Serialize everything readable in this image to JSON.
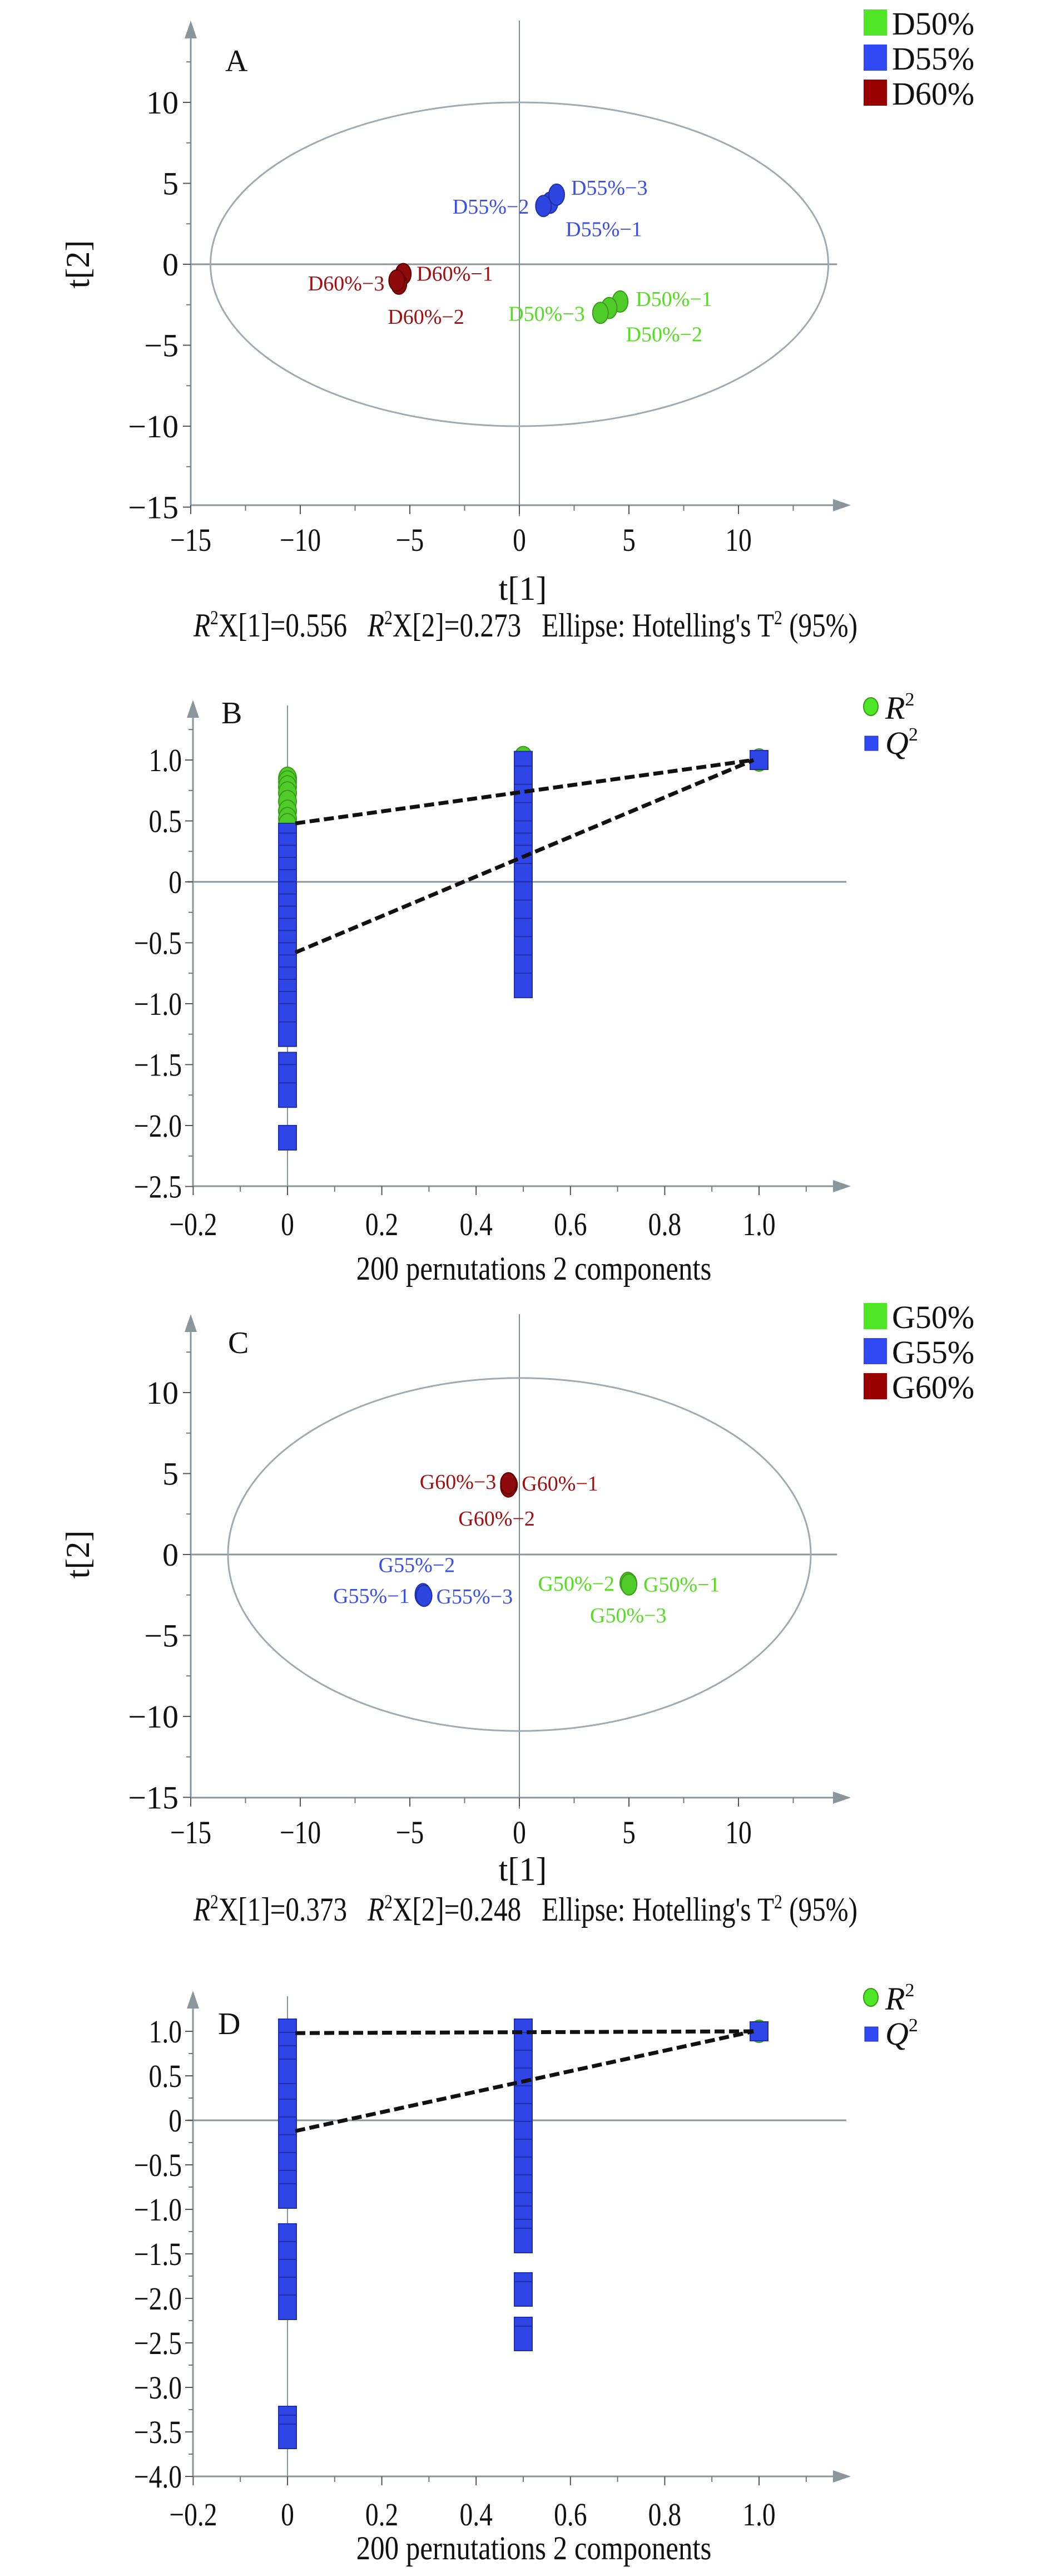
{
  "chart_data": [
    {
      "id": "A",
      "type": "scatter",
      "panel_label": "A",
      "xlabel": "t[1]",
      "ylabel": "t[2]",
      "xlim": [
        -15,
        14
      ],
      "ylim": [
        -15,
        14
      ],
      "xticks": [
        -15,
        -10,
        -5,
        0,
        5,
        10
      ],
      "yticks": [
        -15,
        -10,
        -5,
        0,
        5,
        10
      ],
      "xtick_labels": [
        "−15",
        "−10",
        "−5",
        "0",
        "5",
        "10"
      ],
      "ytick_labels": [
        "−15",
        "−10",
        "−5",
        "0",
        "5",
        "10"
      ],
      "ellipse": {
        "label": "Hotelling's T2 (95%)",
        "rx": 14.1,
        "ry": 10.0
      },
      "legend_position": "top-right",
      "series": [
        {
          "name": "D50%",
          "color": "#4ee626",
          "points": [
            {
              "label": "D50%−1",
              "x": 4.6,
              "y": -2.3
            },
            {
              "label": "D50%−2",
              "x": 4.1,
              "y": -2.7
            },
            {
              "label": "D50%−3",
              "x": 3.7,
              "y": -3.0
            }
          ]
        },
        {
          "name": "D55%",
          "color": "#3148f5",
          "points": [
            {
              "label": "D55%−1",
              "x": 1.4,
              "y": 3.8
            },
            {
              "label": "D55%−2",
              "x": 1.1,
              "y": 3.6
            },
            {
              "label": "D55%−3",
              "x": 1.7,
              "y": 4.3
            }
          ]
        },
        {
          "name": "D60%",
          "color": "#990000",
          "points": [
            {
              "label": "D60%−1",
              "x": -5.3,
              "y": -0.6
            },
            {
              "label": "D60%−2",
              "x": -5.5,
              "y": -1.2
            },
            {
              "label": "D60%−3",
              "x": -5.6,
              "y": -1.0
            }
          ]
        }
      ],
      "caption": {
        "r2x1": "R2X[1]=0.556",
        "r2x1_value": "X[1]=0.556",
        "r2x2_value": "X[2]=0.273",
        "ellipse_text": "Ellipse: Hotelling's T",
        "ellipse_tail": "(95%)"
      }
    },
    {
      "id": "B",
      "type": "scatter",
      "panel_label": "B",
      "xlabel": "200 pernutations 2 components",
      "ylabel": "",
      "xlim": [
        -0.2,
        1.15
      ],
      "ylim": [
        -2.5,
        1.3
      ],
      "xticks": [
        -0.2,
        0,
        0.2,
        0.4,
        0.6,
        0.8,
        1.0
      ],
      "xtick_labels": [
        "−0.2",
        "0",
        "0.2",
        "0.4",
        "0.6",
        "0.8",
        "1.0"
      ],
      "yticks": [
        -2.5,
        -2.0,
        -1.5,
        -1.0,
        -0.5,
        0,
        0.5,
        1.0
      ],
      "ytick_labels": [
        "−2.5",
        "−2.0",
        "−1.5",
        "−1.0",
        "−0.5",
        "0",
        "0.5",
        "1.0"
      ],
      "legend_position": "top-right",
      "legend": [
        {
          "name": "R2",
          "base": "R",
          "sup": "2",
          "marker": "circle",
          "color": "#4ee626"
        },
        {
          "name": "Q2",
          "base": "Q",
          "sup": "2",
          "marker": "square",
          "color": "#3148f5"
        }
      ],
      "series": [
        {
          "name": "R2",
          "color": "#4ee626",
          "x": [
            0,
            0,
            0,
            0,
            0,
            0,
            0,
            0,
            0.5,
            0.5,
            0.5,
            0.5,
            0.5,
            0.5,
            1.0
          ],
          "y": [
            0.85,
            0.82,
            0.78,
            0.73,
            0.66,
            0.58,
            0.52,
            0.47,
            1.02,
            0.95,
            0.85,
            0.75,
            0.62,
            0.52,
            1.0
          ]
        },
        {
          "name": "Q2",
          "color": "#3148f5",
          "x": [
            0,
            0,
            0,
            0,
            0,
            0,
            0,
            0,
            0,
            0,
            0,
            0,
            0,
            0,
            0,
            0,
            0,
            0,
            0,
            0,
            0,
            0.5,
            0.5,
            0.5,
            0.5,
            0.5,
            0.5,
            0.5,
            0.5,
            0.5,
            0.5,
            0.5,
            0.5,
            0.5,
            0.5,
            1.0
          ],
          "y": [
            0.38,
            0.3,
            0.2,
            0.1,
            0.0,
            -0.1,
            -0.2,
            -0.3,
            -0.4,
            -0.5,
            -0.6,
            -0.7,
            -0.8,
            -0.9,
            -1.0,
            -1.1,
            -1.25,
            -1.5,
            -1.6,
            -1.75,
            -2.1,
            0.97,
            0.85,
            0.7,
            0.55,
            0.4,
            0.3,
            0.2,
            0.05,
            -0.1,
            -0.25,
            -0.4,
            -0.55,
            -0.7,
            -0.85,
            1.0
          ]
        }
      ],
      "regression_lines": [
        {
          "name": "R2",
          "intercept": 0.48,
          "x": [
            0,
            1.0
          ],
          "y": [
            0.48,
            1.0
          ]
        },
        {
          "name": "Q2",
          "intercept": -0.58,
          "x": [
            0,
            1.0
          ],
          "y": [
            -0.58,
            1.0
          ]
        }
      ]
    },
    {
      "id": "C",
      "type": "scatter",
      "panel_label": "C",
      "xlabel": "t[1]",
      "ylabel": "t[2]",
      "xlim": [
        -15,
        14
      ],
      "ylim": [
        -15,
        14
      ],
      "xticks": [
        -15,
        -10,
        -5,
        0,
        5,
        10
      ],
      "yticks": [
        -15,
        -10,
        -5,
        0,
        5,
        10
      ],
      "xtick_labels": [
        "−15",
        "−10",
        "−5",
        "0",
        "5",
        "10"
      ],
      "ytick_labels": [
        "−15",
        "−10",
        "−5",
        "0",
        "5",
        "10"
      ],
      "ellipse": {
        "label": "Hotelling's T2 (95%)",
        "rx": 13.3,
        "ry": 10.9
      },
      "legend_position": "top-right",
      "series": [
        {
          "name": "G50%",
          "color": "#4ee626",
          "points": [
            {
              "label": "G50%−1",
              "x": 5.0,
              "y": -1.8
            },
            {
              "label": "G50%−2",
              "x": 4.95,
              "y": -1.75
            },
            {
              "label": "G50%−3",
              "x": 5.0,
              "y": -1.85
            }
          ]
        },
        {
          "name": "G55%",
          "color": "#3148f5",
          "points": [
            {
              "label": "G55%−1",
              "x": -4.4,
              "y": -2.5
            },
            {
              "label": "G55%−2",
              "x": -4.4,
              "y": -2.45
            },
            {
              "label": "G55%−3",
              "x": -4.35,
              "y": -2.55
            }
          ]
        },
        {
          "name": "G60%",
          "color": "#990000",
          "points": [
            {
              "label": "G60%−1",
              "x": -0.45,
              "y": 4.3
            },
            {
              "label": "G60%−2",
              "x": -0.5,
              "y": 4.2
            },
            {
              "label": "G60%−3",
              "x": -0.5,
              "y": 4.4
            }
          ]
        }
      ],
      "caption": {
        "r2x1_value": "X[1]=0.373",
        "r2x2_value": "X[2]=0.248",
        "ellipse_text": "Ellipse: Hotelling's T",
        "ellipse_tail": "(95%)"
      }
    },
    {
      "id": "D",
      "type": "scatter",
      "panel_label": "D",
      "xlabel": "200 pernutations 2 components",
      "ylabel": "",
      "xlim": [
        -0.2,
        1.15
      ],
      "ylim": [
        -4.0,
        1.3
      ],
      "xticks": [
        -0.2,
        0,
        0.2,
        0.4,
        0.6,
        0.8,
        1.0
      ],
      "xtick_labels": [
        "−0.2",
        "0",
        "0.2",
        "0.4",
        "0.6",
        "0.8",
        "1.0"
      ],
      "yticks": [
        -4.0,
        -3.5,
        -3.0,
        -2.5,
        -2.0,
        -1.5,
        -1.0,
        -0.5,
        0,
        0.5,
        1.0
      ],
      "ytick_labels": [
        "−4.0",
        "−3.5",
        "−3.0",
        "−2.5",
        "−2.0",
        "−1.5",
        "−1.0",
        "−0.5",
        "0",
        "0.5",
        "1.0"
      ],
      "legend_position": "top-right",
      "legend": [
        {
          "name": "R2",
          "base": "R",
          "sup": "2",
          "marker": "circle",
          "color": "#4ee626"
        },
        {
          "name": "Q2",
          "base": "Q",
          "sup": "2",
          "marker": "square",
          "color": "#3148f5"
        }
      ],
      "series": [
        {
          "name": "R2",
          "color": "#4ee626",
          "x": [
            0,
            0,
            0,
            0.5,
            0.5,
            0.5,
            1.0
          ],
          "y": [
            1.0,
            0.95,
            0.9,
            1.0,
            0.95,
            0.9,
            1.0
          ]
        },
        {
          "name": "Q2",
          "color": "#3148f5",
          "x": [
            0,
            0,
            0,
            0,
            0,
            0,
            0,
            0,
            0,
            0,
            0,
            0,
            0,
            0,
            0,
            0,
            0,
            0,
            0,
            0,
            0.5,
            0.5,
            0.5,
            0.5,
            0.5,
            0.5,
            0.5,
            0.5,
            0.5,
            0.5,
            0.5,
            0.5,
            0.5,
            0.5,
            0.5,
            0.5,
            0.5,
            0.5,
            1.0
          ],
          "y": [
            1.0,
            0.85,
            0.7,
            0.5,
            0.3,
            0.1,
            -0.1,
            -0.3,
            -0.5,
            -0.7,
            -0.85,
            -1.3,
            -1.5,
            -1.7,
            -1.9,
            -2.1,
            -3.35,
            -3.45,
            -3.55,
            0.55,
            1.0,
            0.85,
            0.65,
            0.45,
            0.25,
            0.05,
            -0.15,
            -0.35,
            -0.55,
            -0.75,
            -0.95,
            -1.1,
            -1.25,
            -1.35,
            -1.85,
            -1.95,
            -2.35,
            -2.45,
            1.0
          ]
        }
      ],
      "regression_lines": [
        {
          "name": "R2",
          "intercept": 0.98,
          "x": [
            0,
            1.0
          ],
          "y": [
            0.98,
            1.0
          ]
        },
        {
          "name": "Q2",
          "intercept": -0.12,
          "x": [
            0,
            1.0
          ],
          "y": [
            -0.12,
            1.0
          ]
        }
      ]
    }
  ]
}
